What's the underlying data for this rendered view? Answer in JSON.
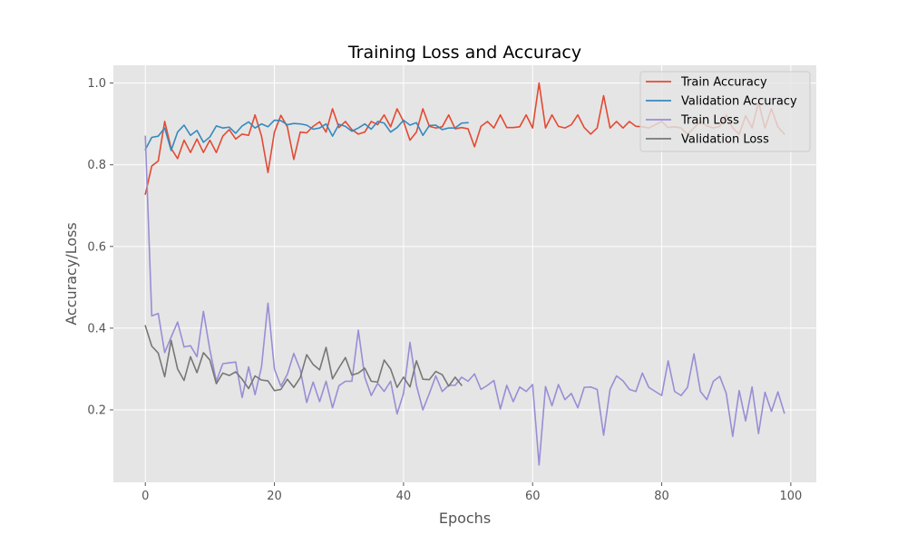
{
  "chart_data": {
    "type": "line",
    "title": "Training Loss and Accuracy",
    "xlabel": "Epochs",
    "ylabel": "Accuracy/Loss",
    "xlim": [
      -4.95,
      103.95
    ],
    "ylim": [
      0.0225,
      1.0435
    ],
    "xticks": [
      0,
      20,
      40,
      60,
      80,
      100
    ],
    "yticks": [
      0.2,
      0.4,
      0.6,
      0.8,
      1.0
    ],
    "xtick_labels": [
      "0",
      "20",
      "40",
      "60",
      "80",
      "100"
    ],
    "ytick_labels": [
      "0.2",
      "0.4",
      "0.6",
      "0.8",
      "1.0"
    ],
    "grid": true,
    "legend_position": "top-right",
    "series": [
      {
        "name": "Train Accuracy",
        "color": "#E24A33",
        "x_start": 0,
        "values": [
          0.728,
          0.797,
          0.809,
          0.906,
          0.84,
          0.815,
          0.86,
          0.83,
          0.863,
          0.83,
          0.86,
          0.83,
          0.87,
          0.886,
          0.863,
          0.875,
          0.872,
          0.922,
          0.87,
          0.781,
          0.88,
          0.921,
          0.893,
          0.813,
          0.88,
          0.878,
          0.894,
          0.905,
          0.88,
          0.937,
          0.891,
          0.906,
          0.886,
          0.875,
          0.88,
          0.906,
          0.898,
          0.922,
          0.893,
          0.937,
          0.906,
          0.86,
          0.88,
          0.937,
          0.894,
          0.89,
          0.893,
          0.922,
          0.888,
          0.891,
          0.888,
          0.844,
          0.894,
          0.906,
          0.89,
          0.922,
          0.891,
          0.891,
          0.893,
          0.922,
          0.89,
          1.0,
          0.89,
          0.922,
          0.894,
          0.89,
          0.898,
          0.922,
          0.891,
          0.875,
          0.89,
          0.969,
          0.89,
          0.906,
          0.89,
          0.906,
          0.894,
          0.893,
          0.89,
          0.898,
          0.906,
          0.891,
          0.893,
          0.89,
          0.875,
          0.89,
          0.906,
          0.895,
          0.89,
          0.894,
          0.922,
          0.89,
          0.875,
          0.92,
          0.89,
          0.953,
          0.89,
          0.937,
          0.893,
          0.875
        ]
      },
      {
        "name": "Validation Accuracy",
        "color": "#348ABD",
        "x_start": 0,
        "values": [
          0.837,
          0.867,
          0.87,
          0.89,
          0.835,
          0.88,
          0.897,
          0.872,
          0.884,
          0.855,
          0.868,
          0.895,
          0.89,
          0.892,
          0.877,
          0.895,
          0.905,
          0.89,
          0.9,
          0.893,
          0.909,
          0.908,
          0.898,
          0.901,
          0.9,
          0.897,
          0.887,
          0.89,
          0.9,
          0.87,
          0.899,
          0.894,
          0.882,
          0.89,
          0.9,
          0.887,
          0.906,
          0.902,
          0.88,
          0.891,
          0.909,
          0.897,
          0.903,
          0.872,
          0.896,
          0.897,
          0.886,
          0.89,
          0.89,
          0.902,
          0.903
        ]
      },
      {
        "name": "Train Loss",
        "color": "#988ED5",
        "x_start": 0,
        "values": [
          0.87,
          0.43,
          0.436,
          0.34,
          0.378,
          0.415,
          0.354,
          0.357,
          0.33,
          0.441,
          0.347,
          0.27,
          0.313,
          0.315,
          0.317,
          0.23,
          0.305,
          0.237,
          0.305,
          0.461,
          0.3,
          0.258,
          0.287,
          0.338,
          0.298,
          0.218,
          0.268,
          0.22,
          0.27,
          0.205,
          0.259,
          0.27,
          0.27,
          0.395,
          0.28,
          0.235,
          0.265,
          0.245,
          0.27,
          0.19,
          0.24,
          0.365,
          0.26,
          0.2,
          0.24,
          0.283,
          0.245,
          0.26,
          0.26,
          0.28,
          0.27,
          0.288,
          0.25,
          0.26,
          0.272,
          0.202,
          0.26,
          0.22,
          0.256,
          0.245,
          0.262,
          0.065,
          0.257,
          0.21,
          0.262,
          0.225,
          0.24,
          0.205,
          0.255,
          0.256,
          0.25,
          0.138,
          0.25,
          0.283,
          0.271,
          0.25,
          0.245,
          0.29,
          0.255,
          0.245,
          0.235,
          0.32,
          0.245,
          0.235,
          0.255,
          0.337,
          0.245,
          0.225,
          0.27,
          0.282,
          0.24,
          0.135,
          0.247,
          0.173,
          0.256,
          0.142,
          0.243,
          0.196,
          0.244,
          0.192
        ]
      },
      {
        "name": "Validation Loss",
        "color": "#777777",
        "x_start": 0,
        "values": [
          0.406,
          0.356,
          0.339,
          0.281,
          0.37,
          0.3,
          0.272,
          0.33,
          0.291,
          0.34,
          0.322,
          0.264,
          0.29,
          0.284,
          0.293,
          0.275,
          0.252,
          0.283,
          0.273,
          0.271,
          0.247,
          0.25,
          0.275,
          0.255,
          0.279,
          0.335,
          0.311,
          0.298,
          0.353,
          0.276,
          0.303,
          0.328,
          0.285,
          0.29,
          0.302,
          0.27,
          0.268,
          0.322,
          0.3,
          0.255,
          0.28,
          0.256,
          0.32,
          0.275,
          0.274,
          0.294,
          0.286,
          0.258,
          0.28,
          0.26
        ]
      }
    ]
  }
}
